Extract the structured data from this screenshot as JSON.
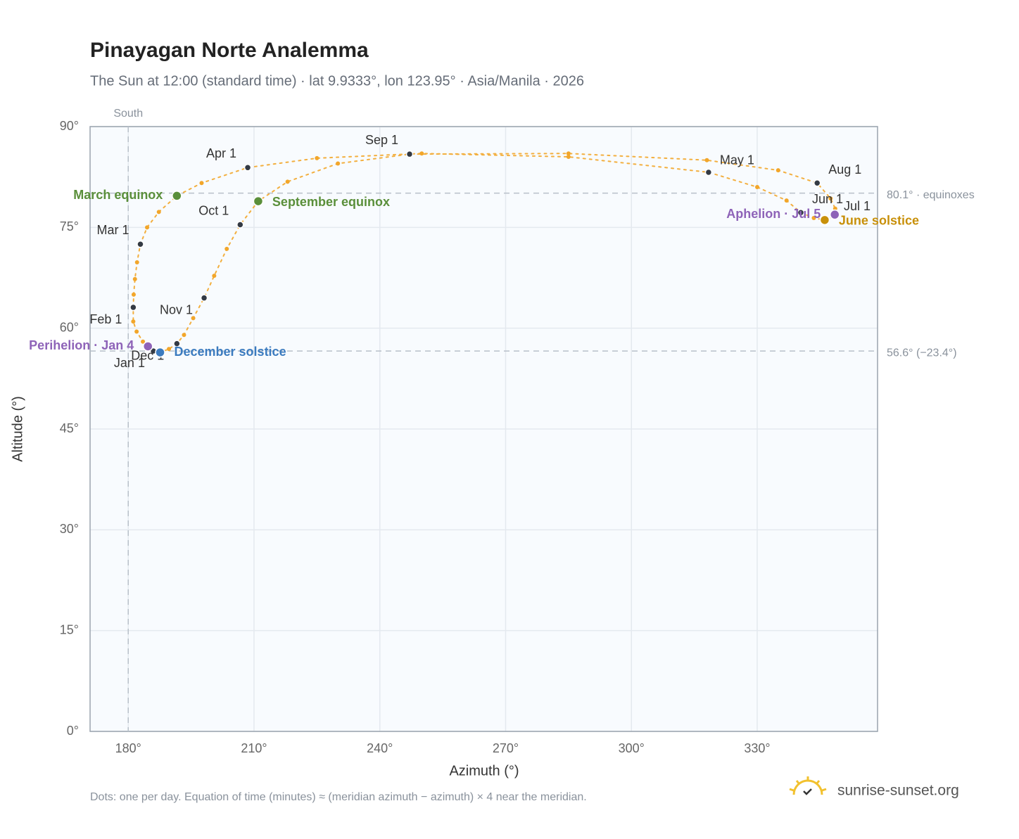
{
  "chart_data": {
    "type": "scatter",
    "title": "Pinayagan Norte Analemma",
    "subtitle": "The Sun at 12:00 (standard time) · lat 9.9333°, lon 123.95° · Asia/Manila · 2026",
    "x_label": "Azimuth (°)",
    "y_label": "Altitude (°)",
    "xlim": [
      170.9,
      358.7
    ],
    "ylim": [
      0,
      90
    ],
    "xticks": [
      {
        "value": 180,
        "label": "180°"
      },
      {
        "value": 210,
        "label": "210°"
      },
      {
        "value": 240,
        "label": "240°"
      },
      {
        "value": 270,
        "label": "270°"
      },
      {
        "value": 300,
        "label": "300°"
      },
      {
        "value": 330,
        "label": "330°"
      }
    ],
    "yticks": [
      {
        "value": 0,
        "label": "0°"
      },
      {
        "value": 15,
        "label": "15°"
      },
      {
        "value": 30,
        "label": "30°"
      },
      {
        "value": 45,
        "label": "45°"
      },
      {
        "value": 60,
        "label": "60°"
      },
      {
        "value": 75,
        "label": "75°"
      },
      {
        "value": 90,
        "label": "90°"
      }
    ],
    "grid": true,
    "color": "#f2a62a",
    "x": [
      186.0,
      184.7,
      183.5,
      182.0,
      181.2,
      181.2,
      181.3,
      181.6,
      182.1,
      182.9,
      184.5,
      187.3,
      191.6,
      197.5,
      208.5,
      225.0,
      250.0,
      285.0,
      318.4,
      330.0,
      337.0,
      340.4,
      343.5,
      346.1,
      348.3,
      348.5,
      348.6,
      347.5,
      344.3,
      335.0,
      318.0,
      285.0,
      247.1,
      230.0,
      218.0,
      211.0,
      206.7,
      203.5,
      200.5,
      198.1,
      195.5,
      193.3,
      191.6,
      189.7,
      187.6,
      185.8
    ],
    "values": [
      56.6,
      57.3,
      58.0,
      59.5,
      61.0,
      63.1,
      65.0,
      67.3,
      69.8,
      72.5,
      75.0,
      77.3,
      79.7,
      81.6,
      83.9,
      85.3,
      86.0,
      85.5,
      83.2,
      81.0,
      79.0,
      77.2,
      76.4,
      76.1,
      76.6,
      76.9,
      77.8,
      79.3,
      81.6,
      83.5,
      85.0,
      86.0,
      85.9,
      84.5,
      81.8,
      78.9,
      75.4,
      71.8,
      67.8,
      64.5,
      61.5,
      59.0,
      57.7,
      56.9,
      56.4,
      56.6
    ],
    "markers": [
      {
        "label": "Jan 1",
        "x": 186.0,
        "y": 56.6,
        "color": "#333a44"
      },
      {
        "label": "Feb 1",
        "x": 181.2,
        "y": 63.1,
        "color": "#333a44"
      },
      {
        "label": "Mar 1",
        "x": 182.9,
        "y": 72.5,
        "color": "#333a44"
      },
      {
        "label": "Apr 1",
        "x": 208.5,
        "y": 83.9,
        "color": "#333a44"
      },
      {
        "label": "May 1",
        "x": 318.4,
        "y": 83.2,
        "color": "#333a44"
      },
      {
        "label": "Jun 1",
        "x": 340.4,
        "y": 77.2,
        "color": "#333a44"
      },
      {
        "label": "Jul 1",
        "x": 348.3,
        "y": 76.6,
        "color": "#333a44"
      },
      {
        "label": "Aug 1",
        "x": 344.3,
        "y": 81.6,
        "color": "#333a44"
      },
      {
        "label": "Sep 1",
        "x": 247.1,
        "y": 85.9,
        "color": "#333a44"
      },
      {
        "label": "Oct 1",
        "x": 206.7,
        "y": 75.4,
        "color": "#333a44"
      },
      {
        "label": "Nov 1",
        "x": 198.1,
        "y": 64.5,
        "color": "#333a44"
      },
      {
        "label": "Dec 1",
        "x": 191.6,
        "y": 57.7,
        "color": "#333a44"
      },
      {
        "label": "March equinox",
        "x": 191.6,
        "y": 79.7,
        "color": "#5a8f3a"
      },
      {
        "label": "September equinox",
        "x": 211.0,
        "y": 78.9,
        "color": "#5a8f3a"
      },
      {
        "label": "June solstice",
        "x": 346.1,
        "y": 76.1,
        "color": "#c8900a"
      },
      {
        "label": "December solstice",
        "x": 187.6,
        "y": 56.4,
        "color": "#3b7bbf"
      },
      {
        "label": "Perihelion · Jan 4",
        "x": 184.7,
        "y": 57.3,
        "color": "#8e63b8"
      },
      {
        "label": "Aphelion · Jul 5",
        "x": 348.5,
        "y": 76.9,
        "color": "#8e63b8"
      }
    ],
    "reference_lines": [
      {
        "value": 80.1,
        "label": "80.1° · equinoxes"
      },
      {
        "value": 56.6,
        "label": "56.6° (−23.4°)"
      }
    ],
    "vertical_line": {
      "value": 180,
      "label": "South"
    },
    "footnote": "Dots: one per day. Equation of time (minutes) ≈ (meridian azimuth − azimuth) × 4 near the meridian.",
    "brand": "sunrise-sunset.org"
  }
}
